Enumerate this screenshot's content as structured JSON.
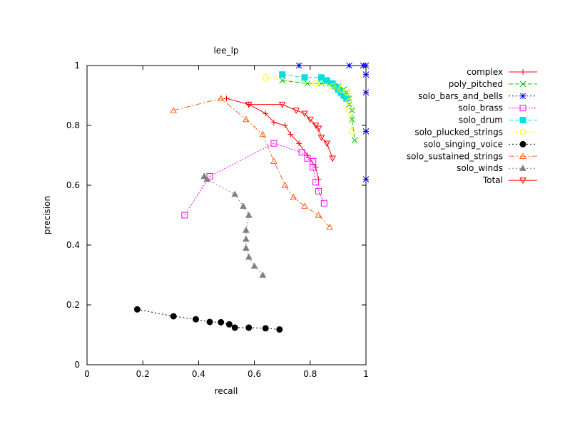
{
  "chart_data": {
    "type": "line",
    "title": "lee_lp",
    "xlabel": "recall",
    "ylabel": "precision",
    "xlim": [
      0,
      1
    ],
    "ylim": [
      0,
      1
    ],
    "grid": false,
    "legend_position": "right",
    "x_ticks": [
      "0",
      "0.2",
      "0.4",
      "0.6",
      "0.8",
      "1"
    ],
    "y_ticks": [
      "0",
      "0.2",
      "0.4",
      "0.6",
      "0.8",
      "1"
    ],
    "series": [
      {
        "name": "complex",
        "color": "#ff0000",
        "dash": "",
        "marker": "plus",
        "points": [
          [
            0.5,
            0.89
          ],
          [
            0.58,
            0.87
          ],
          [
            0.64,
            0.84
          ],
          [
            0.67,
            0.81
          ],
          [
            0.71,
            0.8
          ],
          [
            0.73,
            0.77
          ],
          [
            0.76,
            0.74
          ],
          [
            0.79,
            0.7
          ],
          [
            0.82,
            0.66
          ],
          [
            0.83,
            0.62
          ]
        ]
      },
      {
        "name": "poly_pitched",
        "color": "#00c000",
        "dash": "6,3",
        "marker": "x",
        "points": [
          [
            0.7,
            0.95
          ],
          [
            0.79,
            0.94
          ],
          [
            0.84,
            0.94
          ],
          [
            0.87,
            0.94
          ],
          [
            0.9,
            0.93
          ],
          [
            0.92,
            0.92
          ],
          [
            0.93,
            0.91
          ],
          [
            0.94,
            0.89
          ],
          [
            0.94,
            0.87
          ],
          [
            0.95,
            0.85
          ],
          [
            0.95,
            0.82
          ],
          [
            0.96,
            0.75
          ]
        ]
      },
      {
        "name": "solo_bars_and_bells",
        "color": "#0000ff",
        "dash": "2,3",
        "marker": "star",
        "points": [
          [
            0.76,
            1.0
          ],
          [
            0.94,
            1.0
          ],
          [
            0.99,
            1.0
          ],
          [
            1.0,
            1.0
          ],
          [
            1.0,
            0.97
          ],
          [
            1.0,
            0.91
          ],
          [
            1.0,
            0.78
          ],
          [
            1.0,
            0.62
          ]
        ]
      },
      {
        "name": "solo_brass",
        "color": "#ff00ff",
        "dash": "2,2",
        "marker": "square",
        "points": [
          [
            0.35,
            0.5
          ],
          [
            0.44,
            0.63
          ],
          [
            0.67,
            0.74
          ],
          [
            0.77,
            0.71
          ],
          [
            0.79,
            0.69
          ],
          [
            0.81,
            0.68
          ],
          [
            0.81,
            0.66
          ],
          [
            0.82,
            0.61
          ],
          [
            0.83,
            0.58
          ],
          [
            0.85,
            0.54
          ]
        ]
      },
      {
        "name": "solo_drum",
        "color": "#00e0e0",
        "dash": "6,3",
        "marker": "fsquare",
        "points": [
          [
            0.7,
            0.97
          ],
          [
            0.78,
            0.96
          ],
          [
            0.84,
            0.96
          ],
          [
            0.86,
            0.95
          ],
          [
            0.88,
            0.94
          ],
          [
            0.89,
            0.93
          ],
          [
            0.9,
            0.92
          ],
          [
            0.91,
            0.91
          ],
          [
            0.92,
            0.9
          ],
          [
            0.93,
            0.89
          ]
        ]
      },
      {
        "name": "solo_plucked_strings",
        "color": "#ffff00",
        "dash": "2,3",
        "marker": "circle",
        "points": [
          [
            0.64,
            0.96
          ],
          [
            0.82,
            0.94
          ],
          [
            0.88,
            0.93
          ],
          [
            0.91,
            0.92
          ],
          [
            0.93,
            0.91
          ],
          [
            0.94,
            0.88
          ],
          [
            0.94,
            0.85
          ],
          [
            0.95,
            0.78
          ]
        ]
      },
      {
        "name": "solo_singing_voice",
        "color": "#000000",
        "dash": "2,3",
        "marker": "fcircle",
        "points": [
          [
            0.18,
            0.185
          ],
          [
            0.31,
            0.162
          ],
          [
            0.39,
            0.152
          ],
          [
            0.44,
            0.143
          ],
          [
            0.48,
            0.142
          ],
          [
            0.51,
            0.135
          ],
          [
            0.53,
            0.124
          ],
          [
            0.58,
            0.124
          ],
          [
            0.64,
            0.122
          ],
          [
            0.69,
            0.118
          ]
        ]
      },
      {
        "name": "solo_sustained_strings",
        "color": "#ff6020",
        "dash": "8,3,2,3",
        "marker": "triangle",
        "points": [
          [
            0.31,
            0.85
          ],
          [
            0.48,
            0.89
          ],
          [
            0.57,
            0.82
          ],
          [
            0.63,
            0.77
          ],
          [
            0.67,
            0.68
          ],
          [
            0.71,
            0.6
          ],
          [
            0.74,
            0.56
          ],
          [
            0.78,
            0.53
          ],
          [
            0.83,
            0.5
          ],
          [
            0.87,
            0.46
          ]
        ]
      },
      {
        "name": "solo_winds",
        "color": "#808080",
        "dash": "2,3",
        "marker": "ftriangle",
        "points": [
          [
            0.42,
            0.63
          ],
          [
            0.43,
            0.62
          ],
          [
            0.53,
            0.57
          ],
          [
            0.56,
            0.53
          ],
          [
            0.58,
            0.5
          ],
          [
            0.57,
            0.45
          ],
          [
            0.57,
            0.42
          ],
          [
            0.57,
            0.39
          ],
          [
            0.58,
            0.36
          ],
          [
            0.6,
            0.33
          ],
          [
            0.63,
            0.3
          ]
        ]
      },
      {
        "name": "Total",
        "color": "#ff0000",
        "dash": "",
        "marker": "itriangle",
        "points": [
          [
            0.58,
            0.87
          ],
          [
            0.7,
            0.87
          ],
          [
            0.75,
            0.85
          ],
          [
            0.78,
            0.84
          ],
          [
            0.8,
            0.82
          ],
          [
            0.82,
            0.8
          ],
          [
            0.83,
            0.79
          ],
          [
            0.84,
            0.76
          ],
          [
            0.86,
            0.74
          ],
          [
            0.88,
            0.69
          ]
        ]
      }
    ]
  }
}
